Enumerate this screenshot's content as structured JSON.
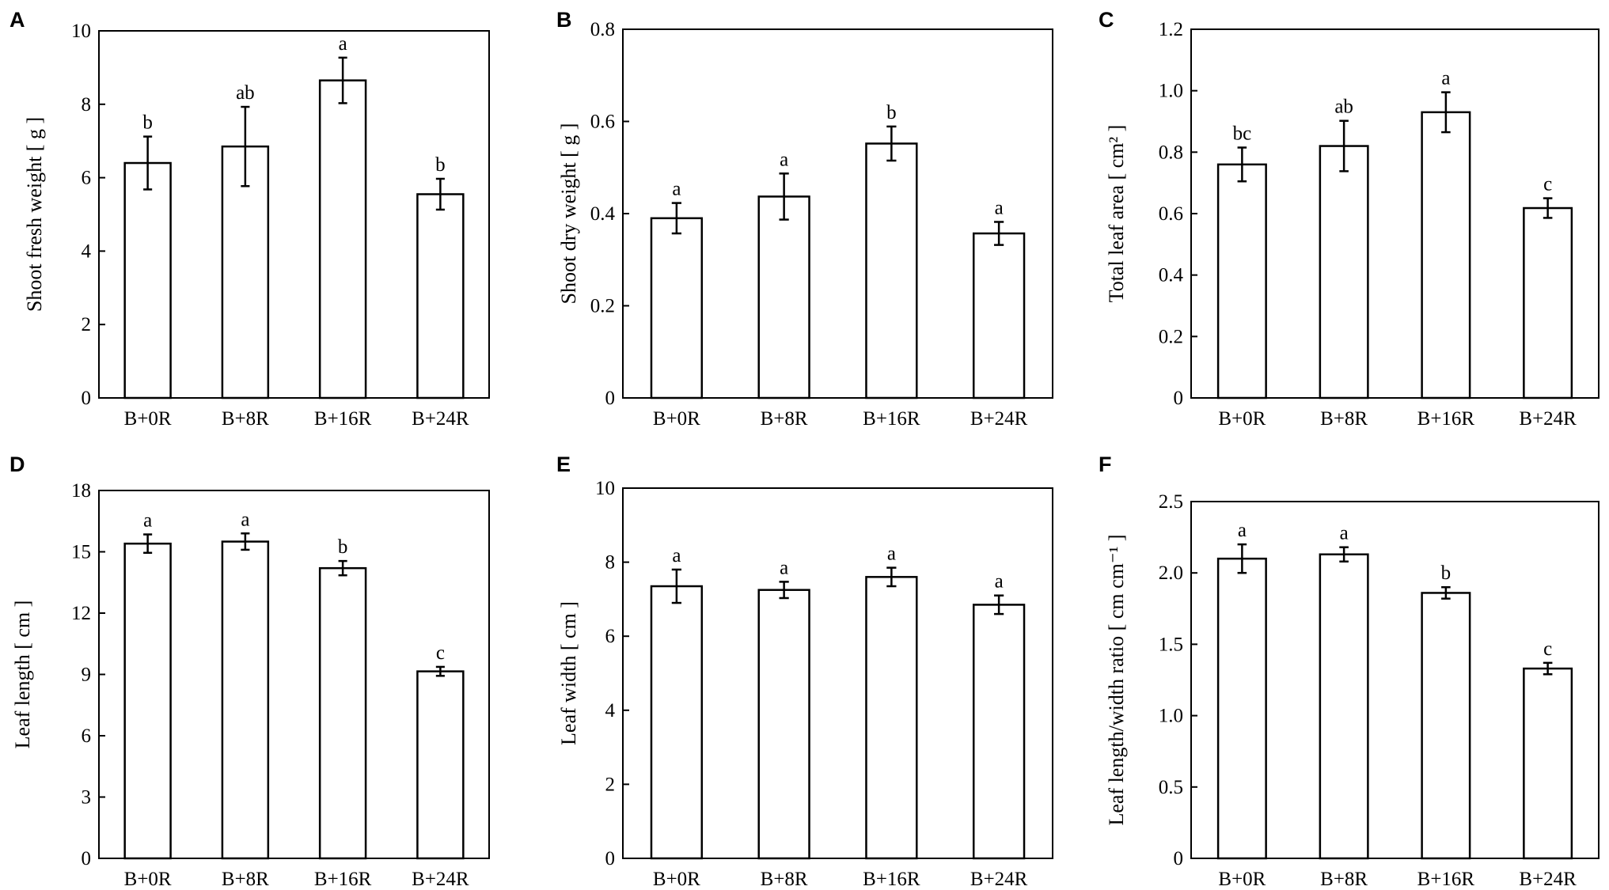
{
  "chart_data": [
    {
      "panel": "A",
      "type": "bar",
      "categories": [
        "B+0R",
        "B+8R",
        "B+16R",
        "B+24R"
      ],
      "values": [
        6.4,
        6.85,
        8.65,
        5.55
      ],
      "errors": [
        0.72,
        1.08,
        0.62,
        0.42
      ],
      "significance": [
        "b",
        "ab",
        "a",
        "b"
      ],
      "ylabel": "Shoot fresh weight [ g ]",
      "ylim": [
        0,
        10
      ],
      "yticks": [
        0,
        2,
        4,
        6,
        8,
        10
      ],
      "ytick_labels": [
        "0",
        "2",
        "4",
        "6",
        "8",
        "10"
      ]
    },
    {
      "panel": "B",
      "type": "bar",
      "categories": [
        "B+0R",
        "B+8R",
        "B+16R",
        "B+24R"
      ],
      "values": [
        0.39,
        0.437,
        0.552,
        0.357
      ],
      "errors": [
        0.033,
        0.05,
        0.037,
        0.025
      ],
      "significance": [
        "a",
        "a",
        "b",
        "a"
      ],
      "ylabel": "Shoot dry weight [ g ]",
      "ylim": [
        0,
        0.8
      ],
      "yticks": [
        0,
        0.2,
        0.4,
        0.6,
        0.8
      ],
      "ytick_labels": [
        "0",
        "0.2",
        "0.4",
        "0.6",
        "0.8"
      ]
    },
    {
      "panel": "C",
      "type": "bar",
      "categories": [
        "B+0R",
        "B+8R",
        "B+16R",
        "B+24R"
      ],
      "values": [
        0.76,
        0.82,
        0.93,
        0.618
      ],
      "errors": [
        0.055,
        0.082,
        0.065,
        0.032
      ],
      "significance": [
        "bc",
        "ab",
        "a",
        "c"
      ],
      "ylabel": "Total leaf area [ cm² ]",
      "ylim": [
        0,
        1.2
      ],
      "yticks": [
        0,
        0.2,
        0.4,
        0.6,
        0.8,
        1.0,
        1.2
      ],
      "ytick_labels": [
        "0",
        "0.2",
        "0.4",
        "0.6",
        "0.8",
        "1.0",
        "1.2"
      ]
    },
    {
      "panel": "D",
      "type": "bar",
      "categories": [
        "B+0R",
        "B+8R",
        "B+16R",
        "B+24R"
      ],
      "values": [
        15.4,
        15.5,
        14.2,
        9.15
      ],
      "errors": [
        0.45,
        0.4,
        0.35,
        0.22
      ],
      "significance": [
        "a",
        "a",
        "b",
        "c"
      ],
      "ylabel": "Leaf length [ cm ]",
      "ylim": [
        0,
        18
      ],
      "yticks": [
        0,
        3,
        6,
        9,
        12,
        15,
        18
      ],
      "ytick_labels": [
        "0",
        "3",
        "6",
        "9",
        "12",
        "15",
        "18"
      ]
    },
    {
      "panel": "E",
      "type": "bar",
      "categories": [
        "B+0R",
        "B+8R",
        "B+16R",
        "B+24R"
      ],
      "values": [
        7.35,
        7.25,
        7.6,
        6.85
      ],
      "errors": [
        0.45,
        0.22,
        0.25,
        0.25
      ],
      "significance": [
        "a",
        "a",
        "a",
        "a"
      ],
      "ylabel": "Leaf width [ cm ]",
      "ylim": [
        0,
        10
      ],
      "yticks": [
        0,
        2,
        4,
        6,
        8,
        10
      ],
      "ytick_labels": [
        "0",
        "2",
        "4",
        "6",
        "8",
        "10"
      ]
    },
    {
      "panel": "F",
      "type": "bar",
      "categories": [
        "B+0R",
        "B+8R",
        "B+16R",
        "B+24R"
      ],
      "values": [
        2.1,
        2.13,
        1.86,
        1.33
      ],
      "errors": [
        0.1,
        0.05,
        0.04,
        0.04
      ],
      "significance": [
        "a",
        "a",
        "b",
        "c"
      ],
      "ylabel": "Leaf length/width ratio [ cm cm⁻¹ ]",
      "ylim": [
        0,
        2.5
      ],
      "yticks": [
        0,
        0.5,
        1.0,
        1.5,
        2.0,
        2.5
      ],
      "ytick_labels": [
        "0",
        "0.5",
        "1.0",
        "1.5",
        "2.0",
        "2.5"
      ]
    }
  ]
}
